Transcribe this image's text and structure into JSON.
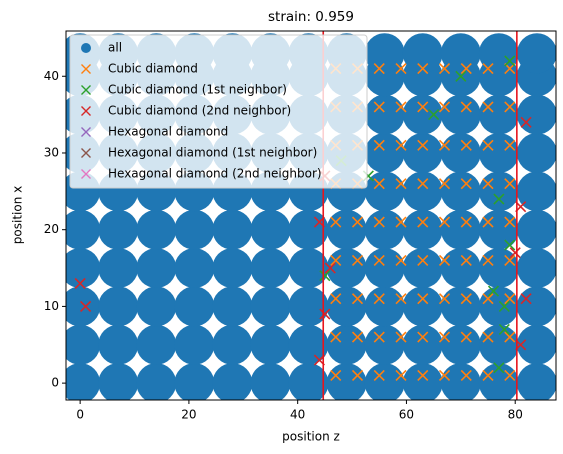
{
  "chart_data": {
    "type": "scatter",
    "title": "strain: 0.959",
    "x_label": "position z",
    "y_label": "position x",
    "xlim": [
      -2.6,
      87.5
    ],
    "ylim": [
      -2.2,
      45.9
    ],
    "xticks": [
      0,
      20,
      40,
      60,
      80
    ],
    "yticks": [
      0,
      10,
      20,
      30,
      40
    ],
    "vlines": [
      44.7,
      80.3
    ],
    "vline_color": "#e8141c",
    "legend": "upper left",
    "series": [
      {
        "name": "all",
        "color": "#1f77b4",
        "marker": "o",
        "x": [
          0,
          0,
          0,
          0,
          0,
          0,
          0,
          0,
          0,
          0,
          7,
          7,
          7,
          7,
          7,
          7,
          7,
          7,
          7,
          7,
          14,
          14,
          14,
          14,
          14,
          14,
          14,
          14,
          14,
          14,
          21,
          21,
          21,
          21,
          21,
          21,
          21,
          21,
          21,
          21,
          28,
          28,
          28,
          28,
          28,
          28,
          28,
          28,
          28,
          28,
          35,
          35,
          35,
          35,
          35,
          35,
          35,
          35,
          35,
          35,
          42,
          42,
          42,
          42,
          42,
          42,
          42,
          42,
          42,
          42,
          49,
          49,
          49,
          49,
          49,
          49,
          49,
          49,
          49,
          49,
          56,
          56,
          56,
          56,
          56,
          56,
          56,
          56,
          56,
          56,
          63,
          63,
          63,
          63,
          63,
          63,
          63,
          63,
          63,
          63,
          70,
          70,
          70,
          70,
          70,
          70,
          70,
          70,
          70,
          70,
          77,
          77,
          77,
          77,
          77,
          77,
          77,
          77,
          77,
          77,
          84,
          84,
          84,
          84,
          84,
          84,
          84,
          84,
          84,
          84
        ],
        "values": [
          0,
          5,
          10,
          15,
          20,
          25,
          30,
          35,
          40,
          43,
          0,
          5,
          10,
          15,
          20,
          25,
          30,
          35,
          40,
          43,
          0,
          5,
          10,
          15,
          20,
          25,
          30,
          35,
          40,
          43,
          0,
          5,
          10,
          15,
          20,
          25,
          30,
          35,
          40,
          43,
          0,
          5,
          10,
          15,
          20,
          25,
          30,
          35,
          40,
          43,
          0,
          5,
          10,
          15,
          20,
          25,
          30,
          35,
          40,
          43,
          0,
          5,
          10,
          15,
          20,
          25,
          30,
          35,
          40,
          43,
          0,
          5,
          10,
          15,
          20,
          25,
          30,
          35,
          40,
          43,
          0,
          5,
          10,
          15,
          20,
          25,
          30,
          35,
          40,
          43,
          0,
          5,
          10,
          15,
          20,
          25,
          30,
          35,
          40,
          43,
          0,
          5,
          10,
          15,
          20,
          25,
          30,
          35,
          40,
          43,
          0,
          5,
          10,
          15,
          20,
          25,
          30,
          35,
          40,
          43,
          0,
          5,
          10,
          15,
          20,
          25,
          30,
          35,
          40,
          43
        ]
      },
      {
        "name": "Cubic diamond",
        "color": "#ff7f0e",
        "marker": "x",
        "x": [
          47,
          47,
          47,
          47,
          47,
          47,
          47,
          47,
          47,
          51,
          51,
          51,
          51,
          51,
          51,
          51,
          51,
          51,
          55,
          55,
          55,
          55,
          55,
          55,
          55,
          55,
          55,
          59,
          59,
          59,
          59,
          59,
          59,
          59,
          59,
          59,
          63,
          63,
          63,
          63,
          63,
          63,
          63,
          63,
          63,
          67,
          67,
          67,
          67,
          67,
          67,
          67,
          67,
          67,
          71,
          71,
          71,
          71,
          71,
          71,
          71,
          71,
          71,
          75,
          75,
          75,
          75,
          75,
          75,
          75,
          75,
          75,
          79,
          79,
          79,
          79,
          79,
          79,
          79,
          79,
          79
        ],
        "values": [
          1,
          6,
          11,
          16,
          21,
          26,
          31,
          36,
          41,
          1,
          6,
          11,
          16,
          21,
          26,
          31,
          36,
          41,
          1,
          6,
          11,
          16,
          21,
          26,
          31,
          36,
          41,
          1,
          6,
          11,
          16,
          21,
          26,
          31,
          36,
          41,
          1,
          6,
          11,
          16,
          21,
          26,
          31,
          36,
          41,
          1,
          6,
          11,
          16,
          21,
          26,
          31,
          36,
          41,
          1,
          6,
          11,
          16,
          21,
          26,
          31,
          36,
          41,
          1,
          6,
          11,
          16,
          21,
          26,
          31,
          36,
          41,
          1,
          6,
          11,
          16,
          21,
          26,
          31,
          36,
          41
        ]
      },
      {
        "name": "Cubic diamond (1st neighbor)",
        "color": "#2ca02c",
        "marker": "x",
        "x": [
          77,
          78,
          76,
          79,
          77,
          48,
          65,
          70,
          79,
          78,
          45,
          53
        ],
        "values": [
          2,
          7,
          12,
          18,
          24,
          29,
          35,
          40,
          42,
          10,
          14,
          27
        ]
      },
      {
        "name": "Cubic diamond (2nd neighbor)",
        "color": "#d62728",
        "marker": "x",
        "x": [
          44,
          45,
          46,
          44,
          45,
          81,
          82,
          80,
          81,
          82,
          0,
          1
        ],
        "values": [
          3,
          9,
          15,
          21,
          27,
          5,
          11,
          17,
          23,
          34,
          13,
          10
        ]
      },
      {
        "name": "Hexagonal diamond",
        "color": "#9467bd",
        "marker": "x",
        "x": [],
        "values": []
      },
      {
        "name": "Hexagonal diamond (1st neighbor)",
        "color": "#8c564b",
        "marker": "x",
        "x": [],
        "values": []
      },
      {
        "name": "Hexagonal diamond (2nd neighbor)",
        "color": "#e377c2",
        "marker": "x",
        "x": [],
        "values": []
      }
    ]
  }
}
